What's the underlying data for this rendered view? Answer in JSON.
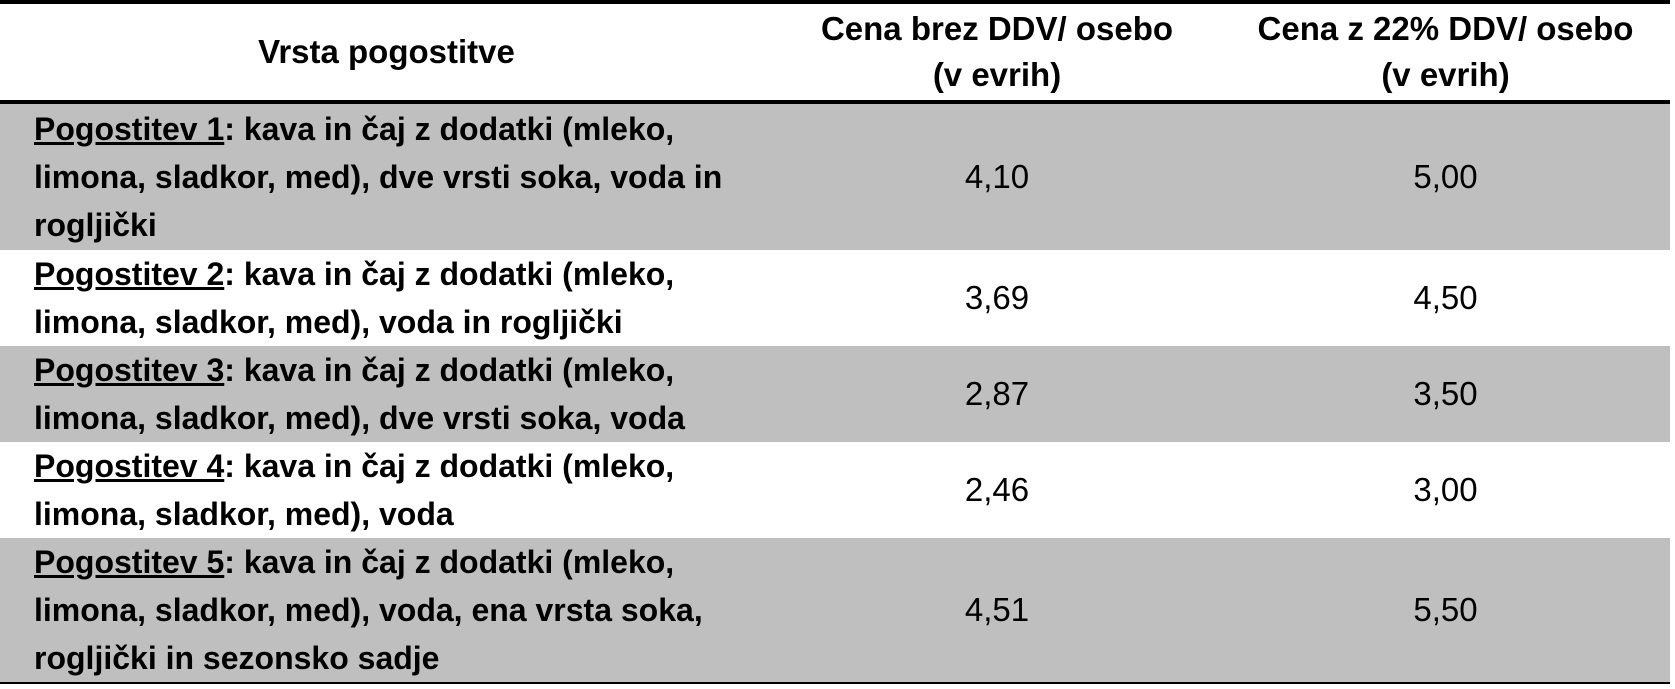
{
  "table": {
    "headers": {
      "type": "Vrsta pogostitve",
      "price_no_vat": [
        "Cena brez DDV/ osebo",
        "(v evrih)"
      ],
      "price_with_vat": [
        "Cena z 22% DDV/ osebo",
        "(v evrih)"
      ]
    },
    "rows": [
      {
        "name": "Pogostitev 1",
        "description": ": kava in čaj z dodatki (mleko, limona, sladkor, med), dve vrsti soka, voda in rogljički",
        "price_no_vat": "4,10",
        "price_with_vat": "5,00"
      },
      {
        "name": "Pogostitev 2",
        "description": ": kava in čaj z dodatki (mleko, limona, sladkor, med), voda in rogljički",
        "price_no_vat": "3,69",
        "price_with_vat": "4,50"
      },
      {
        "name": "Pogostitev 3",
        "description": ": kava in čaj z dodatki (mleko, limona, sladkor, med), dve vrsti soka, voda",
        "price_no_vat": "2,87",
        "price_with_vat": "3,50"
      },
      {
        "name": "Pogostitev 4",
        "description": ": kava in čaj z dodatki (mleko, limona, sladkor, med), voda",
        "price_no_vat": "2,46",
        "price_with_vat": "3,00"
      },
      {
        "name": "Pogostitev 5",
        "description": ": kava in čaj z dodatki (mleko, limona, sladkor, med), voda, ena vrsta soka, rogljički in sezonsko sadje",
        "price_no_vat": "4,51",
        "price_with_vat": "5,50"
      }
    ]
  },
  "colors": {
    "row_shade": "#bfbfbf",
    "row_plain": "#ffffff",
    "rule": "#000000"
  }
}
